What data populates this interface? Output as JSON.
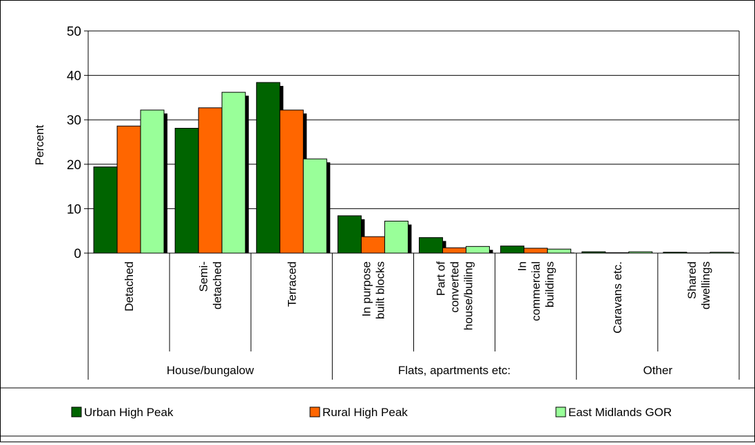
{
  "chart_data": {
    "type": "bar",
    "title": "",
    "xlabel": "",
    "ylabel": "Percent",
    "ylim": [
      0,
      50
    ],
    "yticks": [
      0,
      10,
      20,
      30,
      40,
      50
    ],
    "grid": true,
    "legend_position": "bottom",
    "categories": [
      "Detached",
      "Semi-\ndetached",
      "Terraced",
      "In purpose\nbuilt blocks",
      "Part of\nconverted\nhouse/builing",
      "In\ncommercial\nbuildings",
      "Caravans etc.",
      "Shared\ndwellings"
    ],
    "groups": [
      {
        "label": "House/bungalow",
        "span": [
          0,
          2
        ]
      },
      {
        "label": "Flats, apartments etc:",
        "span": [
          3,
          5
        ]
      },
      {
        "label": "Other",
        "span": [
          6,
          7
        ]
      }
    ],
    "series": [
      {
        "name": "Urban High Peak",
        "color": "#006400",
        "values": [
          19.4,
          28.1,
          38.4,
          8.4,
          3.5,
          1.6,
          0.3,
          0.2
        ]
      },
      {
        "name": "Rural High Peak",
        "color": "#ff6600",
        "values": [
          28.6,
          32.7,
          32.2,
          3.7,
          1.2,
          1.1,
          0.1,
          0.05
        ]
      },
      {
        "name": "East Midlands GOR",
        "color": "#99ff99",
        "values": [
          32.2,
          36.2,
          21.2,
          7.2,
          1.5,
          0.9,
          0.3,
          0.2
        ]
      }
    ]
  }
}
